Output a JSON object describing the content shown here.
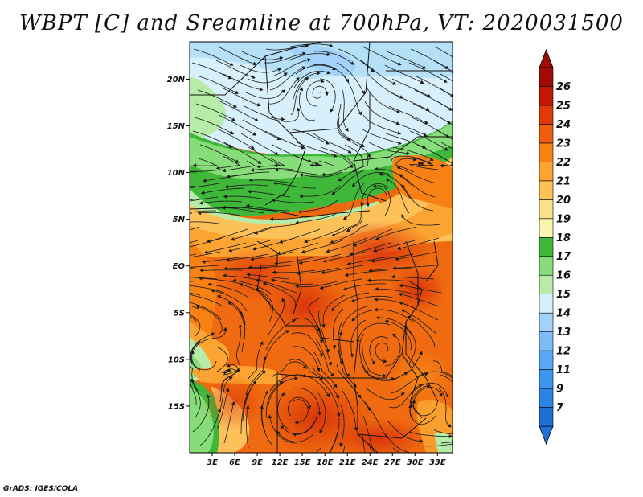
{
  "title": "WBPT [C] and Sreamline at 700hPa, VT: 2020031500",
  "credit": "GrADS: IGES/COLA",
  "map": {
    "lat_labels": [
      "20N",
      "15N",
      "10N",
      "5N",
      "EQ",
      "5S",
      "10S",
      "15S"
    ],
    "lat_values": [
      20,
      15,
      10,
      5,
      0,
      -5,
      -10,
      -15
    ],
    "lon_labels": [
      "3E",
      "6E",
      "9E",
      "12E",
      "15E",
      "18E",
      "21E",
      "24E",
      "27E",
      "30E",
      "33E"
    ],
    "lon_values": [
      3,
      6,
      9,
      12,
      15,
      18,
      21,
      24,
      27,
      30,
      33
    ],
    "lon_range": [
      0,
      35
    ],
    "lat_range": [
      -20,
      24
    ]
  },
  "colorbar": {
    "labels": [
      "7",
      "9",
      "11",
      "12",
      "13",
      "14",
      "15",
      "16",
      "17",
      "18",
      "19",
      "20",
      "21",
      "22",
      "23",
      "24",
      "25",
      "26"
    ],
    "colors": [
      "#1e6fd6",
      "#2b82e4",
      "#3c96ef",
      "#5aa8f4",
      "#7dbcf7",
      "#a2d2fa",
      "#d8f0fc",
      "#b6eca8",
      "#87dd79",
      "#3fb83a",
      "#fbf5b0",
      "#fde08a",
      "#fdc15a",
      "#fca431",
      "#f88114",
      "#ef5e0c",
      "#df3a08",
      "#c01a04",
      "#a00c04"
    ],
    "under_color": "#1e6fd6",
    "over_color": "#a00c04"
  }
}
